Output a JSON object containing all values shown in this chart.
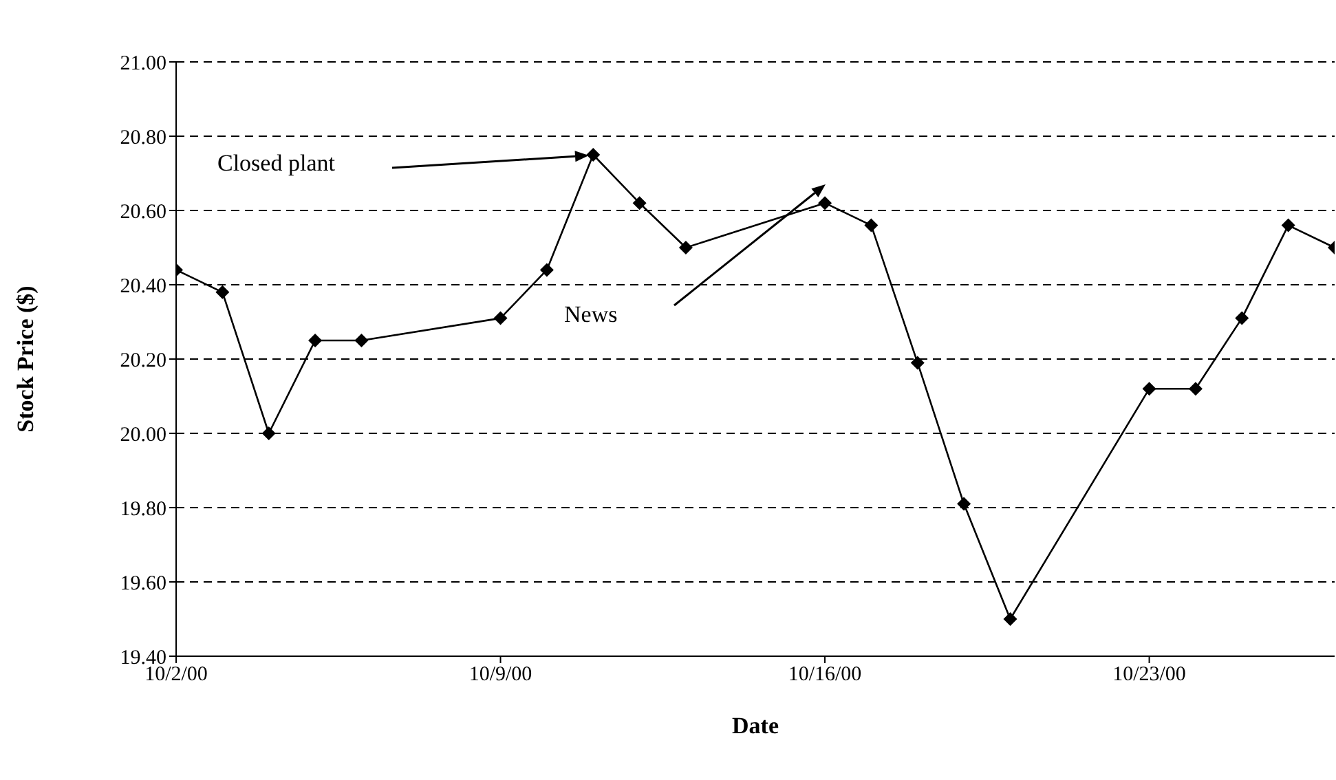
{
  "chart_data": {
    "type": "line",
    "xlabel": "Date",
    "ylabel": "Stock Price ($)",
    "x": [
      "2000-10-02",
      "2000-10-03",
      "2000-10-04",
      "2000-10-05",
      "2000-10-06",
      "2000-10-09",
      "2000-10-10",
      "2000-10-11",
      "2000-10-12",
      "2000-10-13",
      "2000-10-16",
      "2000-10-17",
      "2000-10-18",
      "2000-10-19",
      "2000-10-20",
      "2000-10-23",
      "2000-10-24",
      "2000-10-25",
      "2000-10-26",
      "2000-10-27"
    ],
    "series": [
      {
        "color": "#000000",
        "values": [
          20.44,
          20.38,
          20.0,
          20.25,
          20.25,
          20.31,
          20.44,
          20.75,
          20.62,
          20.5,
          20.62,
          20.56,
          20.19,
          19.81,
          19.5,
          20.12,
          20.12,
          20.31,
          20.56,
          20.5
        ]
      }
    ],
    "xlim": [
      "2000-10-02",
      "2000-10-27"
    ],
    "xticks": [
      {
        "value": "2000-10-02",
        "label": "10/2/00"
      },
      {
        "value": "2000-10-09",
        "label": "10/9/00"
      },
      {
        "value": "2000-10-16",
        "label": "10/16/00"
      },
      {
        "value": "2000-10-23",
        "label": "10/23/00"
      }
    ],
    "ylim": [
      19.4,
      21.0
    ],
    "yticks": [
      {
        "value": 19.4,
        "label": "19.40"
      },
      {
        "value": 19.6,
        "label": "19.60"
      },
      {
        "value": 19.8,
        "label": "19.80"
      },
      {
        "value": 20.0,
        "label": "20.00"
      },
      {
        "value": 20.2,
        "label": "20.20"
      },
      {
        "value": 20.4,
        "label": "20.40"
      },
      {
        "value": 20.6,
        "label": "20.60"
      },
      {
        "value": 20.8,
        "label": "20.80"
      },
      {
        "value": 21.0,
        "label": "21.00"
      }
    ],
    "grid": "y",
    "marker": "diamond",
    "line_style": "solid",
    "annotations": [
      "Closed plant",
      "News"
    ]
  }
}
